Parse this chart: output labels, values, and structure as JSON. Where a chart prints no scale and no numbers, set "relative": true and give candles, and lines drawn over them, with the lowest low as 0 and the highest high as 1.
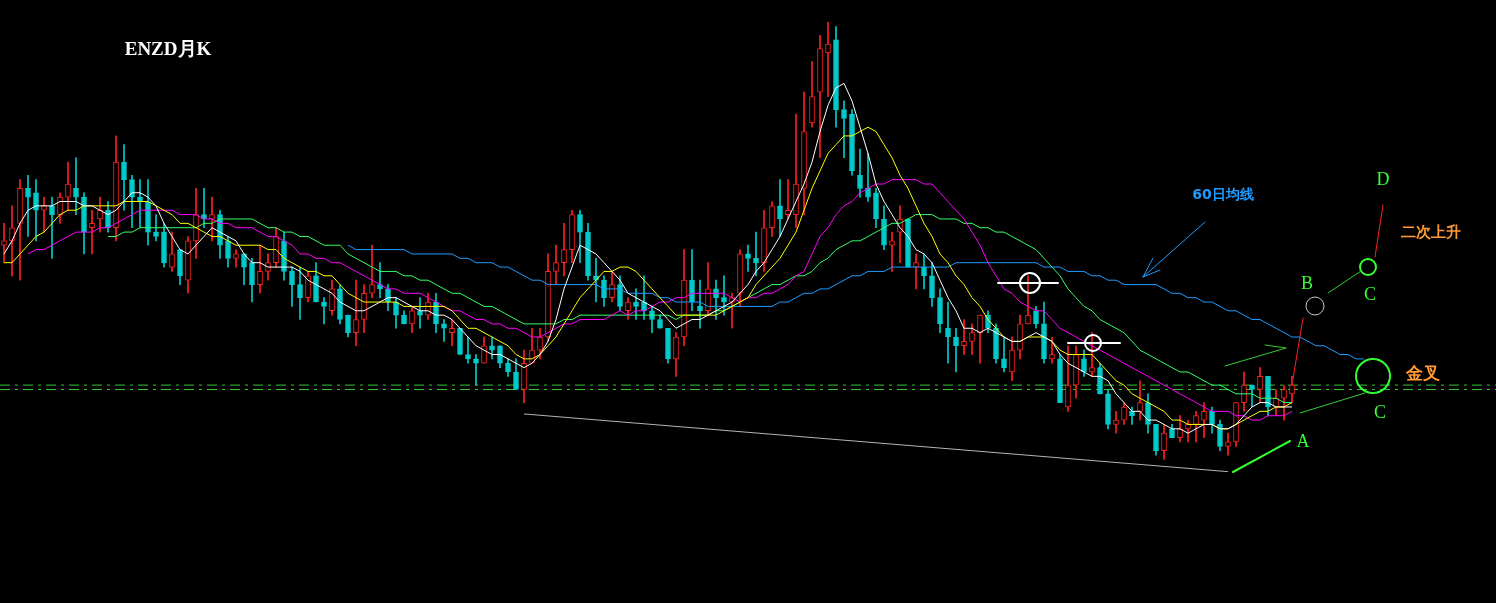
{
  "chart_data": {
    "type": "candlestick",
    "title": "ENZD月K",
    "relative": true,
    "grid": false,
    "legend": false,
    "tick_labels": false,
    "marker": "none",
    "annotations": [
      "二次上升",
      "金叉",
      "A",
      "B",
      "C",
      "C",
      "D"
    ],
    "categories": [
      null,
      null,
      null,
      null,
      null,
      null,
      null,
      null,
      null,
      null,
      null,
      null,
      null,
      null,
      null,
      null,
      null,
      null,
      null,
      null,
      null,
      null,
      null,
      null,
      null,
      null,
      null,
      null,
      null,
      null,
      null,
      null,
      null,
      null,
      null,
      null,
      null,
      null,
      null,
      null,
      null,
      null,
      null,
      null,
      null,
      null,
      null,
      null,
      null,
      null,
      null,
      null,
      null,
      null,
      null,
      null,
      null,
      null,
      null,
      null,
      null,
      null,
      null,
      null,
      null,
      null,
      null,
      null,
      null,
      null,
      null,
      null,
      null,
      null,
      null,
      null,
      null,
      null,
      null,
      null,
      null,
      null,
      null,
      null,
      null,
      null,
      null,
      null,
      null,
      null,
      null,
      null,
      null,
      null,
      null,
      null,
      null,
      null,
      null,
      null,
      null,
      null,
      null,
      null,
      null,
      null,
      null,
      null,
      null,
      null,
      null,
      null,
      null,
      null,
      null,
      null,
      null,
      null,
      null,
      null,
      null,
      null,
      null,
      null,
      null,
      null,
      null,
      null,
      null,
      null,
      null,
      null,
      null,
      null,
      null,
      null,
      null,
      null,
      null,
      null,
      null,
      null,
      null,
      null,
      null,
      null,
      null,
      null,
      null,
      null,
      null,
      null,
      null,
      null,
      null,
      null,
      null,
      null,
      null,
      null,
      null,
      null,
      null,
      null,
      null,
      null,
      null,
      null,
      null,
      null,
      null,
      null
    ],
    "ohlc": [
      [
        0.49,
        0.54,
        0.45,
        0.5
      ],
      [
        0.5,
        0.58,
        0.42,
        0.53
      ],
      [
        0.54,
        0.64,
        0.41,
        0.62
      ],
      [
        0.62,
        0.65,
        0.51,
        0.6
      ],
      [
        0.61,
        0.64,
        0.5,
        0.57
      ],
      [
        0.57,
        0.6,
        0.52,
        0.58
      ],
      [
        0.58,
        0.6,
        0.46,
        0.56
      ],
      [
        0.56,
        0.61,
        0.54,
        0.6
      ],
      [
        0.6,
        0.68,
        0.57,
        0.63
      ],
      [
        0.62,
        0.69,
        0.56,
        0.6
      ],
      [
        0.6,
        0.61,
        0.47,
        0.52
      ],
      [
        0.53,
        0.57,
        0.47,
        0.54
      ],
      [
        0.55,
        0.6,
        0.52,
        0.57
      ],
      [
        0.57,
        0.59,
        0.52,
        0.53
      ],
      [
        0.53,
        0.74,
        0.5,
        0.68
      ],
      [
        0.68,
        0.72,
        0.57,
        0.64
      ],
      [
        0.64,
        0.65,
        0.53,
        0.6
      ],
      [
        0.6,
        0.64,
        0.53,
        0.59
      ],
      [
        0.59,
        0.64,
        0.49,
        0.52
      ],
      [
        0.52,
        0.56,
        0.5,
        0.51
      ],
      [
        0.52,
        0.54,
        0.44,
        0.45
      ],
      [
        0.44,
        0.52,
        0.43,
        0.47
      ],
      [
        0.48,
        0.48,
        0.4,
        0.42
      ],
      [
        0.41,
        0.51,
        0.38,
        0.5
      ],
      [
        0.5,
        0.62,
        0.46,
        0.56
      ],
      [
        0.56,
        0.62,
        0.53,
        0.55
      ],
      [
        0.55,
        0.6,
        0.5,
        0.56
      ],
      [
        0.56,
        0.57,
        0.46,
        0.49
      ],
      [
        0.5,
        0.51,
        0.44,
        0.46
      ],
      [
        0.46,
        0.48,
        0.44,
        0.47
      ],
      [
        0.47,
        0.47,
        0.4,
        0.44
      ],
      [
        0.45,
        0.46,
        0.36,
        0.4
      ],
      [
        0.4,
        0.49,
        0.38,
        0.43
      ],
      [
        0.43,
        0.47,
        0.41,
        0.45
      ],
      [
        0.45,
        0.53,
        0.44,
        0.51
      ],
      [
        0.5,
        0.52,
        0.41,
        0.43
      ],
      [
        0.43,
        0.44,
        0.35,
        0.4
      ],
      [
        0.4,
        0.44,
        0.32,
        0.37
      ],
      [
        0.37,
        0.43,
        0.36,
        0.42
      ],
      [
        0.42,
        0.45,
        0.36,
        0.36
      ],
      [
        0.36,
        0.37,
        0.31,
        0.35
      ],
      [
        0.34,
        0.41,
        0.33,
        0.39
      ],
      [
        0.39,
        0.4,
        0.31,
        0.32
      ],
      [
        0.33,
        0.33,
        0.28,
        0.29
      ],
      [
        0.29,
        0.41,
        0.26,
        0.32
      ],
      [
        0.32,
        0.4,
        0.29,
        0.38
      ],
      [
        0.38,
        0.49,
        0.37,
        0.4
      ],
      [
        0.4,
        0.45,
        0.37,
        0.39
      ],
      [
        0.39,
        0.4,
        0.34,
        0.36
      ],
      [
        0.36,
        0.37,
        0.3,
        0.33
      ],
      [
        0.33,
        0.34,
        0.31,
        0.31
      ],
      [
        0.31,
        0.35,
        0.29,
        0.34
      ],
      [
        0.34,
        0.37,
        0.3,
        0.33
      ],
      [
        0.33,
        0.38,
        0.32,
        0.36
      ],
      [
        0.36,
        0.38,
        0.29,
        0.31
      ],
      [
        0.31,
        0.32,
        0.27,
        0.3
      ],
      [
        0.29,
        0.32,
        0.26,
        0.3
      ],
      [
        0.3,
        0.3,
        0.24,
        0.24
      ],
      [
        0.24,
        0.28,
        0.22,
        0.23
      ],
      [
        0.23,
        0.24,
        0.17,
        0.22
      ],
      [
        0.22,
        0.28,
        0.22,
        0.26
      ],
      [
        0.26,
        0.28,
        0.23,
        0.25
      ],
      [
        0.26,
        0.26,
        0.21,
        0.22
      ],
      [
        0.22,
        0.23,
        0.19,
        0.2
      ],
      [
        0.2,
        0.23,
        0.16,
        0.16
      ],
      [
        0.16,
        0.25,
        0.13,
        0.22
      ],
      [
        0.22,
        0.3,
        0.22,
        0.25
      ],
      [
        0.25,
        0.3,
        0.23,
        0.28
      ],
      [
        0.28,
        0.47,
        0.27,
        0.43
      ],
      [
        0.43,
        0.49,
        0.4,
        0.45
      ],
      [
        0.45,
        0.54,
        0.42,
        0.48
      ],
      [
        0.48,
        0.57,
        0.45,
        0.56
      ],
      [
        0.56,
        0.57,
        0.45,
        0.52
      ],
      [
        0.52,
        0.54,
        0.41,
        0.42
      ],
      [
        0.42,
        0.46,
        0.36,
        0.41
      ],
      [
        0.41,
        0.42,
        0.35,
        0.37
      ],
      [
        0.37,
        0.43,
        0.36,
        0.4
      ],
      [
        0.4,
        0.42,
        0.34,
        0.35
      ],
      [
        0.34,
        0.37,
        0.32,
        0.36
      ],
      [
        0.36,
        0.39,
        0.32,
        0.35
      ],
      [
        0.36,
        0.42,
        0.32,
        0.34
      ],
      [
        0.34,
        0.35,
        0.29,
        0.32
      ],
      [
        0.32,
        0.33,
        0.3,
        0.3
      ],
      [
        0.3,
        0.3,
        0.22,
        0.23
      ],
      [
        0.23,
        0.29,
        0.19,
        0.28
      ],
      [
        0.28,
        0.48,
        0.26,
        0.41
      ],
      [
        0.41,
        0.48,
        0.34,
        0.36
      ],
      [
        0.35,
        0.41,
        0.3,
        0.34
      ],
      [
        0.34,
        0.45,
        0.33,
        0.39
      ],
      [
        0.39,
        0.41,
        0.32,
        0.37
      ],
      [
        0.37,
        0.42,
        0.33,
        0.36
      ],
      [
        0.36,
        0.38,
        0.3,
        0.37
      ],
      [
        0.38,
        0.48,
        0.35,
        0.47
      ],
      [
        0.47,
        0.49,
        0.43,
        0.46
      ],
      [
        0.46,
        0.52,
        0.42,
        0.45
      ],
      [
        0.45,
        0.57,
        0.43,
        0.53
      ],
      [
        0.53,
        0.59,
        0.51,
        0.58
      ],
      [
        0.58,
        0.64,
        0.51,
        0.55
      ],
      [
        0.56,
        0.64,
        0.55,
        0.57
      ],
      [
        0.56,
        0.79,
        0.53,
        0.63
      ],
      [
        0.62,
        0.84,
        0.56,
        0.75
      ],
      [
        0.77,
        0.91,
        0.76,
        0.83
      ],
      [
        0.84,
        0.97,
        0.69,
        0.94
      ],
      [
        0.93,
        1.0,
        0.83,
        0.95
      ],
      [
        0.96,
        0.99,
        0.76,
        0.8
      ],
      [
        0.8,
        0.82,
        0.69,
        0.78
      ],
      [
        0.79,
        0.8,
        0.65,
        0.66
      ],
      [
        0.65,
        0.71,
        0.6,
        0.62
      ],
      [
        0.62,
        0.7,
        0.59,
        0.6
      ],
      [
        0.61,
        0.62,
        0.53,
        0.55
      ],
      [
        0.55,
        0.58,
        0.48,
        0.49
      ],
      [
        0.49,
        0.52,
        0.43,
        0.5
      ],
      [
        0.52,
        0.58,
        0.45,
        0.55
      ],
      [
        0.55,
        0.55,
        0.44,
        0.44
      ],
      [
        0.44,
        0.47,
        0.39,
        0.45
      ],
      [
        0.44,
        0.47,
        0.39,
        0.42
      ],
      [
        0.42,
        0.45,
        0.35,
        0.37
      ],
      [
        0.37,
        0.39,
        0.29,
        0.31
      ],
      [
        0.3,
        0.36,
        0.22,
        0.28
      ],
      [
        0.28,
        0.3,
        0.2,
        0.26
      ],
      [
        0.26,
        0.32,
        0.24,
        0.27
      ],
      [
        0.27,
        0.31,
        0.24,
        0.29
      ],
      [
        0.29,
        0.33,
        0.22,
        0.33
      ],
      [
        0.33,
        0.34,
        0.29,
        0.3
      ],
      [
        0.3,
        0.31,
        0.22,
        0.23
      ],
      [
        0.23,
        0.28,
        0.2,
        0.21
      ],
      [
        0.2,
        0.28,
        0.18,
        0.25
      ],
      [
        0.25,
        0.33,
        0.23,
        0.31
      ],
      [
        0.31,
        0.42,
        0.31,
        0.33
      ],
      [
        0.34,
        0.35,
        0.3,
        0.31
      ],
      [
        0.31,
        0.36,
        0.22,
        0.23
      ],
      [
        0.23,
        0.28,
        0.22,
        0.24
      ],
      [
        0.23,
        0.24,
        0.13,
        0.13
      ],
      [
        0.12,
        0.26,
        0.11,
        0.17
      ],
      [
        0.17,
        0.26,
        0.14,
        0.24
      ],
      [
        0.23,
        0.25,
        0.19,
        0.2
      ],
      [
        0.2,
        0.29,
        0.19,
        0.21
      ],
      [
        0.21,
        0.22,
        0.15,
        0.15
      ],
      [
        0.15,
        0.16,
        0.07,
        0.08
      ],
      [
        0.08,
        0.11,
        0.06,
        0.09
      ],
      [
        0.09,
        0.13,
        0.08,
        0.12
      ],
      [
        0.11,
        0.12,
        0.08,
        0.1
      ],
      [
        0.11,
        0.18,
        0.09,
        0.13
      ],
      [
        0.13,
        0.15,
        0.06,
        0.08
      ],
      [
        0.08,
        0.08,
        0.01,
        0.02
      ],
      [
        0.02,
        0.08,
        0,
        0.06
      ],
      [
        0.07,
        0.08,
        0.05,
        0.05
      ],
      [
        0.05,
        0.1,
        0.04,
        0.07
      ],
      [
        0.07,
        0.09,
        0.04,
        0.08
      ],
      [
        0.08,
        0.11,
        0.04,
        0.1
      ],
      [
        0.09,
        0.13,
        0.05,
        0.11
      ],
      [
        0.11,
        0.12,
        0.06,
        0.08
      ],
      [
        0.08,
        0.09,
        0.02,
        0.03
      ],
      [
        0.03,
        0.06,
        0.01,
        0.04
      ],
      [
        0.04,
        0.13,
        0.03,
        0.13
      ],
      [
        0.13,
        0.2,
        0.11,
        0.17
      ],
      [
        0.17,
        0.17,
        0.12,
        0.16
      ],
      [
        0.16,
        0.21,
        0.13,
        0.19
      ],
      [
        0.19,
        0.19,
        0.1,
        0.12
      ],
      [
        0.12,
        0.16,
        0.1,
        0.14
      ],
      [
        0.14,
        0.17,
        0.09,
        0.16
      ],
      [
        0.15,
        0.19,
        0.13,
        0.17
      ],
      null,
      null,
      null,
      null,
      null,
      null,
      null,
      null,
      null,
      null
    ],
    "series": [
      {
        "type": "line",
        "color": "#ffffff",
        "values": [
          0.47,
          0.5,
          0.54,
          0.57,
          0.58,
          0.58,
          0.58,
          0.59,
          0.59,
          0.59,
          0.58,
          0.58,
          0.57,
          0.56,
          0.57,
          0.59,
          0.61,
          0.61,
          0.6,
          0.58,
          0.54,
          0.51,
          0.48,
          0.47,
          0.49,
          0.51,
          0.53,
          0.52,
          0.51,
          0.5,
          0.47,
          0.45,
          0.45,
          0.44,
          0.44,
          0.44,
          0.44,
          0.43,
          0.41,
          0.4,
          0.39,
          0.38,
          0.36,
          0.35,
          0.34,
          0.34,
          0.35,
          0.36,
          0.37,
          0.37,
          0.36,
          0.35,
          0.34,
          0.34,
          0.33,
          0.33,
          0.32,
          0.3,
          0.28,
          0.26,
          0.25,
          0.24,
          0.24,
          0.23,
          0.22,
          0.21,
          0.22,
          0.24,
          0.27,
          0.32,
          0.39,
          0.44,
          0.49,
          0.48,
          0.47,
          0.45,
          0.43,
          0.41,
          0.38,
          0.37,
          0.36,
          0.35,
          0.34,
          0.32,
          0.3,
          0.31,
          0.32,
          0.32,
          0.33,
          0.34,
          0.35,
          0.36,
          0.38,
          0.4,
          0.43,
          0.45,
          0.48,
          0.51,
          0.55,
          0.59,
          0.63,
          0.68,
          0.75,
          0.81,
          0.85,
          0.86,
          0.82,
          0.76,
          0.7,
          0.63,
          0.59,
          0.56,
          0.53,
          0.51,
          0.48,
          0.47,
          0.45,
          0.41,
          0.37,
          0.34,
          0.3,
          0.3,
          0.29,
          0.3,
          0.29,
          0.28,
          0.27,
          0.27,
          0.28,
          0.29,
          0.28,
          0.27,
          0.24,
          0.22,
          0.21,
          0.2,
          0.19,
          0.19,
          0.18,
          0.15,
          0.13,
          0.11,
          0.11,
          0.09,
          0.09,
          0.08,
          0.07,
          0.07,
          0.06,
          0.07,
          0.08,
          0.08,
          0.07,
          0.07,
          0.08,
          0.1,
          0.12,
          0.13,
          0.13,
          0.12,
          0.12,
          0.12,
          null,
          null,
          null,
          null,
          null,
          null,
          null,
          null,
          null,
          null
        ]
      },
      {
        "type": "line",
        "color": "#ffff00",
        "values": [
          0.45,
          0.45,
          0.47,
          0.49,
          0.51,
          0.52,
          0.54,
          0.56,
          0.57,
          0.57,
          0.58,
          0.58,
          0.58,
          0.58,
          0.58,
          0.59,
          0.59,
          0.59,
          0.59,
          0.58,
          0.57,
          0.56,
          0.54,
          0.54,
          0.53,
          0.52,
          0.51,
          0.51,
          0.5,
          0.49,
          0.49,
          0.49,
          0.49,
          0.48,
          0.48,
          0.46,
          0.45,
          0.44,
          0.43,
          0.43,
          0.42,
          0.42,
          0.4,
          0.38,
          0.37,
          0.36,
          0.36,
          0.36,
          0.36,
          0.36,
          0.35,
          0.35,
          0.35,
          0.35,
          0.35,
          0.35,
          0.34,
          0.32,
          0.3,
          0.3,
          0.29,
          0.28,
          0.27,
          0.26,
          0.24,
          0.23,
          0.23,
          0.24,
          0.26,
          0.28,
          0.31,
          0.34,
          0.37,
          0.39,
          0.41,
          0.43,
          0.43,
          0.44,
          0.44,
          0.43,
          0.41,
          0.39,
          0.37,
          0.35,
          0.33,
          0.33,
          0.33,
          0.33,
          0.33,
          0.33,
          0.34,
          0.35,
          0.36,
          0.37,
          0.4,
          0.42,
          0.44,
          0.46,
          0.49,
          0.52,
          0.57,
          0.62,
          0.66,
          0.7,
          0.72,
          0.74,
          0.74,
          0.75,
          0.76,
          0.75,
          0.72,
          0.69,
          0.65,
          0.62,
          0.58,
          0.54,
          0.51,
          0.47,
          0.45,
          0.42,
          0.4,
          0.37,
          0.35,
          0.32,
          0.3,
          0.28,
          0.27,
          0.27,
          0.28,
          0.28,
          0.28,
          0.27,
          0.25,
          0.24,
          0.24,
          0.24,
          0.24,
          0.22,
          0.2,
          0.18,
          0.17,
          0.15,
          0.14,
          0.13,
          0.12,
          0.11,
          0.09,
          0.09,
          0.08,
          0.08,
          0.08,
          0.08,
          0.07,
          0.07,
          0.08,
          0.09,
          0.1,
          0.11,
          0.11,
          0.12,
          0.12,
          0.13,
          null,
          null,
          null,
          null,
          null,
          null,
          null,
          null,
          null,
          null
        ]
      },
      {
        "type": "line",
        "color": "#ff00ff",
        "values": [
          null,
          null,
          null,
          0.47,
          0.48,
          0.48,
          0.49,
          0.5,
          0.51,
          0.52,
          0.52,
          0.52,
          0.53,
          0.53,
          0.54,
          0.55,
          0.56,
          0.57,
          0.57,
          0.57,
          0.57,
          0.57,
          0.56,
          0.56,
          0.56,
          0.55,
          0.55,
          0.54,
          0.54,
          0.53,
          0.53,
          0.53,
          0.52,
          0.51,
          0.51,
          0.5,
          0.49,
          0.47,
          0.47,
          0.46,
          0.46,
          0.45,
          0.45,
          0.44,
          0.43,
          0.42,
          0.41,
          0.4,
          0.39,
          0.39,
          0.38,
          0.38,
          0.38,
          0.37,
          0.36,
          0.35,
          0.34,
          0.34,
          0.33,
          0.32,
          0.32,
          0.31,
          0.31,
          0.3,
          0.3,
          0.29,
          0.28,
          0.28,
          0.29,
          0.3,
          0.31,
          0.31,
          0.32,
          0.32,
          0.32,
          0.32,
          0.33,
          0.34,
          0.33,
          0.34,
          0.34,
          0.35,
          0.36,
          0.36,
          0.37,
          0.37,
          0.38,
          0.38,
          0.38,
          0.38,
          0.38,
          0.37,
          0.36,
          0.37,
          0.37,
          0.38,
          0.38,
          0.39,
          0.4,
          0.42,
          0.43,
          0.47,
          0.51,
          0.53,
          0.56,
          0.58,
          0.59,
          0.61,
          0.62,
          0.63,
          0.63,
          0.64,
          0.64,
          0.64,
          0.64,
          0.63,
          0.63,
          0.61,
          0.59,
          0.57,
          0.55,
          0.52,
          0.49,
          0.45,
          0.42,
          0.39,
          0.38,
          0.36,
          0.35,
          0.34,
          0.34,
          0.32,
          0.3,
          0.29,
          0.28,
          0.27,
          0.26,
          0.25,
          0.24,
          0.23,
          0.22,
          0.21,
          0.2,
          0.19,
          0.18,
          0.17,
          0.16,
          0.15,
          0.14,
          0.13,
          0.12,
          0.11,
          0.11,
          0.11,
          0.1,
          0.1,
          0.09,
          0.09,
          0.1,
          0.1,
          0.1,
          0.11,
          null,
          null,
          null,
          null,
          null,
          null,
          null,
          null,
          null,
          null
        ]
      },
      {
        "type": "line",
        "color": "#33ff66",
        "values": [
          null,
          null,
          null,
          null,
          null,
          null,
          null,
          null,
          null,
          null,
          null,
          null,
          null,
          0.51,
          0.51,
          0.52,
          0.52,
          0.53,
          0.53,
          0.53,
          0.53,
          0.53,
          0.53,
          0.53,
          0.53,
          0.54,
          0.54,
          0.55,
          0.55,
          0.55,
          0.55,
          0.55,
          0.54,
          0.53,
          0.53,
          0.52,
          0.52,
          0.51,
          0.51,
          0.5,
          0.49,
          0.49,
          0.49,
          0.47,
          0.46,
          0.45,
          0.44,
          0.43,
          0.43,
          0.43,
          0.42,
          0.42,
          0.41,
          0.41,
          0.4,
          0.39,
          0.38,
          0.38,
          0.37,
          0.36,
          0.35,
          0.35,
          0.34,
          0.33,
          0.32,
          0.31,
          0.31,
          0.31,
          0.31,
          0.31,
          0.32,
          0.32,
          0.33,
          0.33,
          0.33,
          0.33,
          0.33,
          0.33,
          0.33,
          0.33,
          0.33,
          0.33,
          0.33,
          0.33,
          0.32,
          0.33,
          0.33,
          0.33,
          0.33,
          0.34,
          0.34,
          0.35,
          0.36,
          0.37,
          0.38,
          0.39,
          0.4,
          0.4,
          0.41,
          0.42,
          0.42,
          0.43,
          0.45,
          0.46,
          0.48,
          0.49,
          0.5,
          0.5,
          0.51,
          0.52,
          0.53,
          0.54,
          0.54,
          0.55,
          0.56,
          0.56,
          0.56,
          0.55,
          0.55,
          0.55,
          0.54,
          0.54,
          0.53,
          0.53,
          0.52,
          0.52,
          0.51,
          0.5,
          0.49,
          0.48,
          0.46,
          0.44,
          0.42,
          0.39,
          0.37,
          0.35,
          0.34,
          0.32,
          0.31,
          0.3,
          0.29,
          0.27,
          0.25,
          0.24,
          0.23,
          0.22,
          0.21,
          0.2,
          0.2,
          0.19,
          0.18,
          0.17,
          0.17,
          0.16,
          0.15,
          0.15,
          0.15,
          0.14,
          0.14,
          0.14,
          0.13,
          0.13,
          null,
          null,
          null,
          null,
          null,
          null,
          null,
          null,
          null,
          null
        ]
      },
      {
        "type": "line",
        "name": "60日均线",
        "color": "#1e9bff",
        "values": [
          null,
          null,
          null,
          null,
          null,
          null,
          null,
          null,
          null,
          null,
          null,
          null,
          null,
          null,
          null,
          null,
          null,
          null,
          null,
          null,
          null,
          null,
          null,
          null,
          null,
          null,
          null,
          null,
          null,
          null,
          null,
          null,
          null,
          null,
          null,
          null,
          null,
          null,
          null,
          null,
          null,
          null,
          null,
          0.49,
          0.48,
          0.48,
          0.48,
          0.48,
          0.48,
          0.48,
          0.48,
          0.47,
          0.47,
          0.47,
          0.47,
          0.47,
          0.47,
          0.46,
          0.46,
          0.45,
          0.45,
          0.45,
          0.44,
          0.44,
          0.43,
          0.42,
          0.41,
          0.41,
          0.4,
          0.4,
          0.4,
          0.4,
          0.4,
          0.4,
          0.4,
          0.39,
          0.39,
          0.39,
          0.38,
          0.38,
          0.38,
          0.38,
          0.37,
          0.37,
          0.36,
          0.36,
          0.36,
          0.36,
          0.35,
          0.35,
          0.35,
          0.35,
          0.35,
          0.35,
          0.35,
          0.35,
          0.35,
          0.36,
          0.36,
          0.37,
          0.38,
          0.38,
          0.39,
          0.39,
          0.4,
          0.41,
          0.42,
          0.42,
          0.43,
          0.43,
          0.43,
          0.44,
          0.44,
          0.44,
          0.44,
          0.44,
          0.44,
          0.44,
          0.44,
          0.45,
          0.45,
          0.45,
          0.45,
          0.45,
          0.45,
          0.45,
          0.45,
          0.45,
          0.45,
          0.45,
          0.44,
          0.44,
          0.44,
          0.43,
          0.43,
          0.43,
          0.42,
          0.42,
          0.41,
          0.41,
          0.4,
          0.4,
          0.4,
          0.4,
          0.4,
          0.39,
          0.38,
          0.38,
          0.37,
          0.37,
          0.36,
          0.36,
          0.35,
          0.34,
          0.34,
          0.33,
          0.32,
          0.32,
          0.31,
          0.3,
          0.29,
          0.28,
          0.28,
          0.27,
          0.26,
          0.26,
          0.25,
          0.24,
          0.24,
          0.23,
          0.23,
          null
        ]
      },
      {
        "type": "line",
        "color": "#b4b4b4",
        "values": [
          null,
          null,
          null,
          null,
          null,
          null,
          null,
          null,
          null,
          null,
          null,
          null,
          null,
          null,
          null,
          null,
          null,
          null,
          null,
          null,
          null,
          null,
          null,
          null,
          null,
          null,
          null,
          null,
          null,
          null,
          null,
          null,
          null,
          null,
          null,
          null,
          null,
          null,
          null,
          null,
          null,
          null,
          null,
          null,
          null,
          null,
          null,
          null,
          null,
          null,
          null,
          null,
          null,
          null,
          null,
          null,
          null,
          null,
          null,
          null,
          null,
          null,
          null,
          null,
          null,
          0.104,
          0.1025,
          0.101,
          0.0995,
          0.098,
          0.0965,
          0.095,
          0.0935,
          0.092,
          0.0905,
          0.089,
          0.0875,
          0.086,
          0.0845,
          0.083,
          0.0815,
          0.08,
          0.0785,
          0.077,
          0.0755,
          0.074,
          0.0725,
          0.071,
          0.0695,
          0.068,
          0.0665,
          0.065,
          0.0635,
          0.062,
          0.0605,
          0.059,
          0.0575,
          0.056,
          0.0545,
          0.053,
          0.0515,
          0.05,
          0.0485,
          0.047,
          0.0455,
          0.044,
          0.0425,
          0.041,
          0.0395,
          0.038,
          0.0365,
          0.035,
          0.0335,
          0.032,
          0.0305,
          0.029,
          0.0275,
          0.026,
          0.0245,
          0.023,
          0.0215,
          0.02,
          0.0185,
          0.017,
          0.0155,
          0.014,
          0.0125,
          0.011,
          0.0095,
          0.008,
          0.0065,
          0.005,
          0.0035,
          0.002,
          0.0005,
          -0.001,
          -0.0025,
          -0.004,
          -0.0055,
          -0.007,
          -0.0085,
          -0.01,
          -0.0115,
          -0.013,
          -0.0145,
          -0.016,
          -0.0175,
          -0.019,
          -0.0205,
          -0.022,
          -0.0235,
          -0.025,
          -0.0265,
          -0.028,
          null,
          null,
          null,
          null,
          null,
          null,
          null,
          null,
          null,
          null,
          null,
          null,
          null,
          null,
          null,
          null,
          null,
          null
        ]
      }
    ],
    "ref_lines": [
      {
        "axis": "y",
        "value": 0.17,
        "color": "#33cc33",
        "line_style": "dashed"
      },
      {
        "axis": "y",
        "value": 0.16,
        "color": "#33cc33",
        "line_style": "dashed"
      }
    ]
  }
}
